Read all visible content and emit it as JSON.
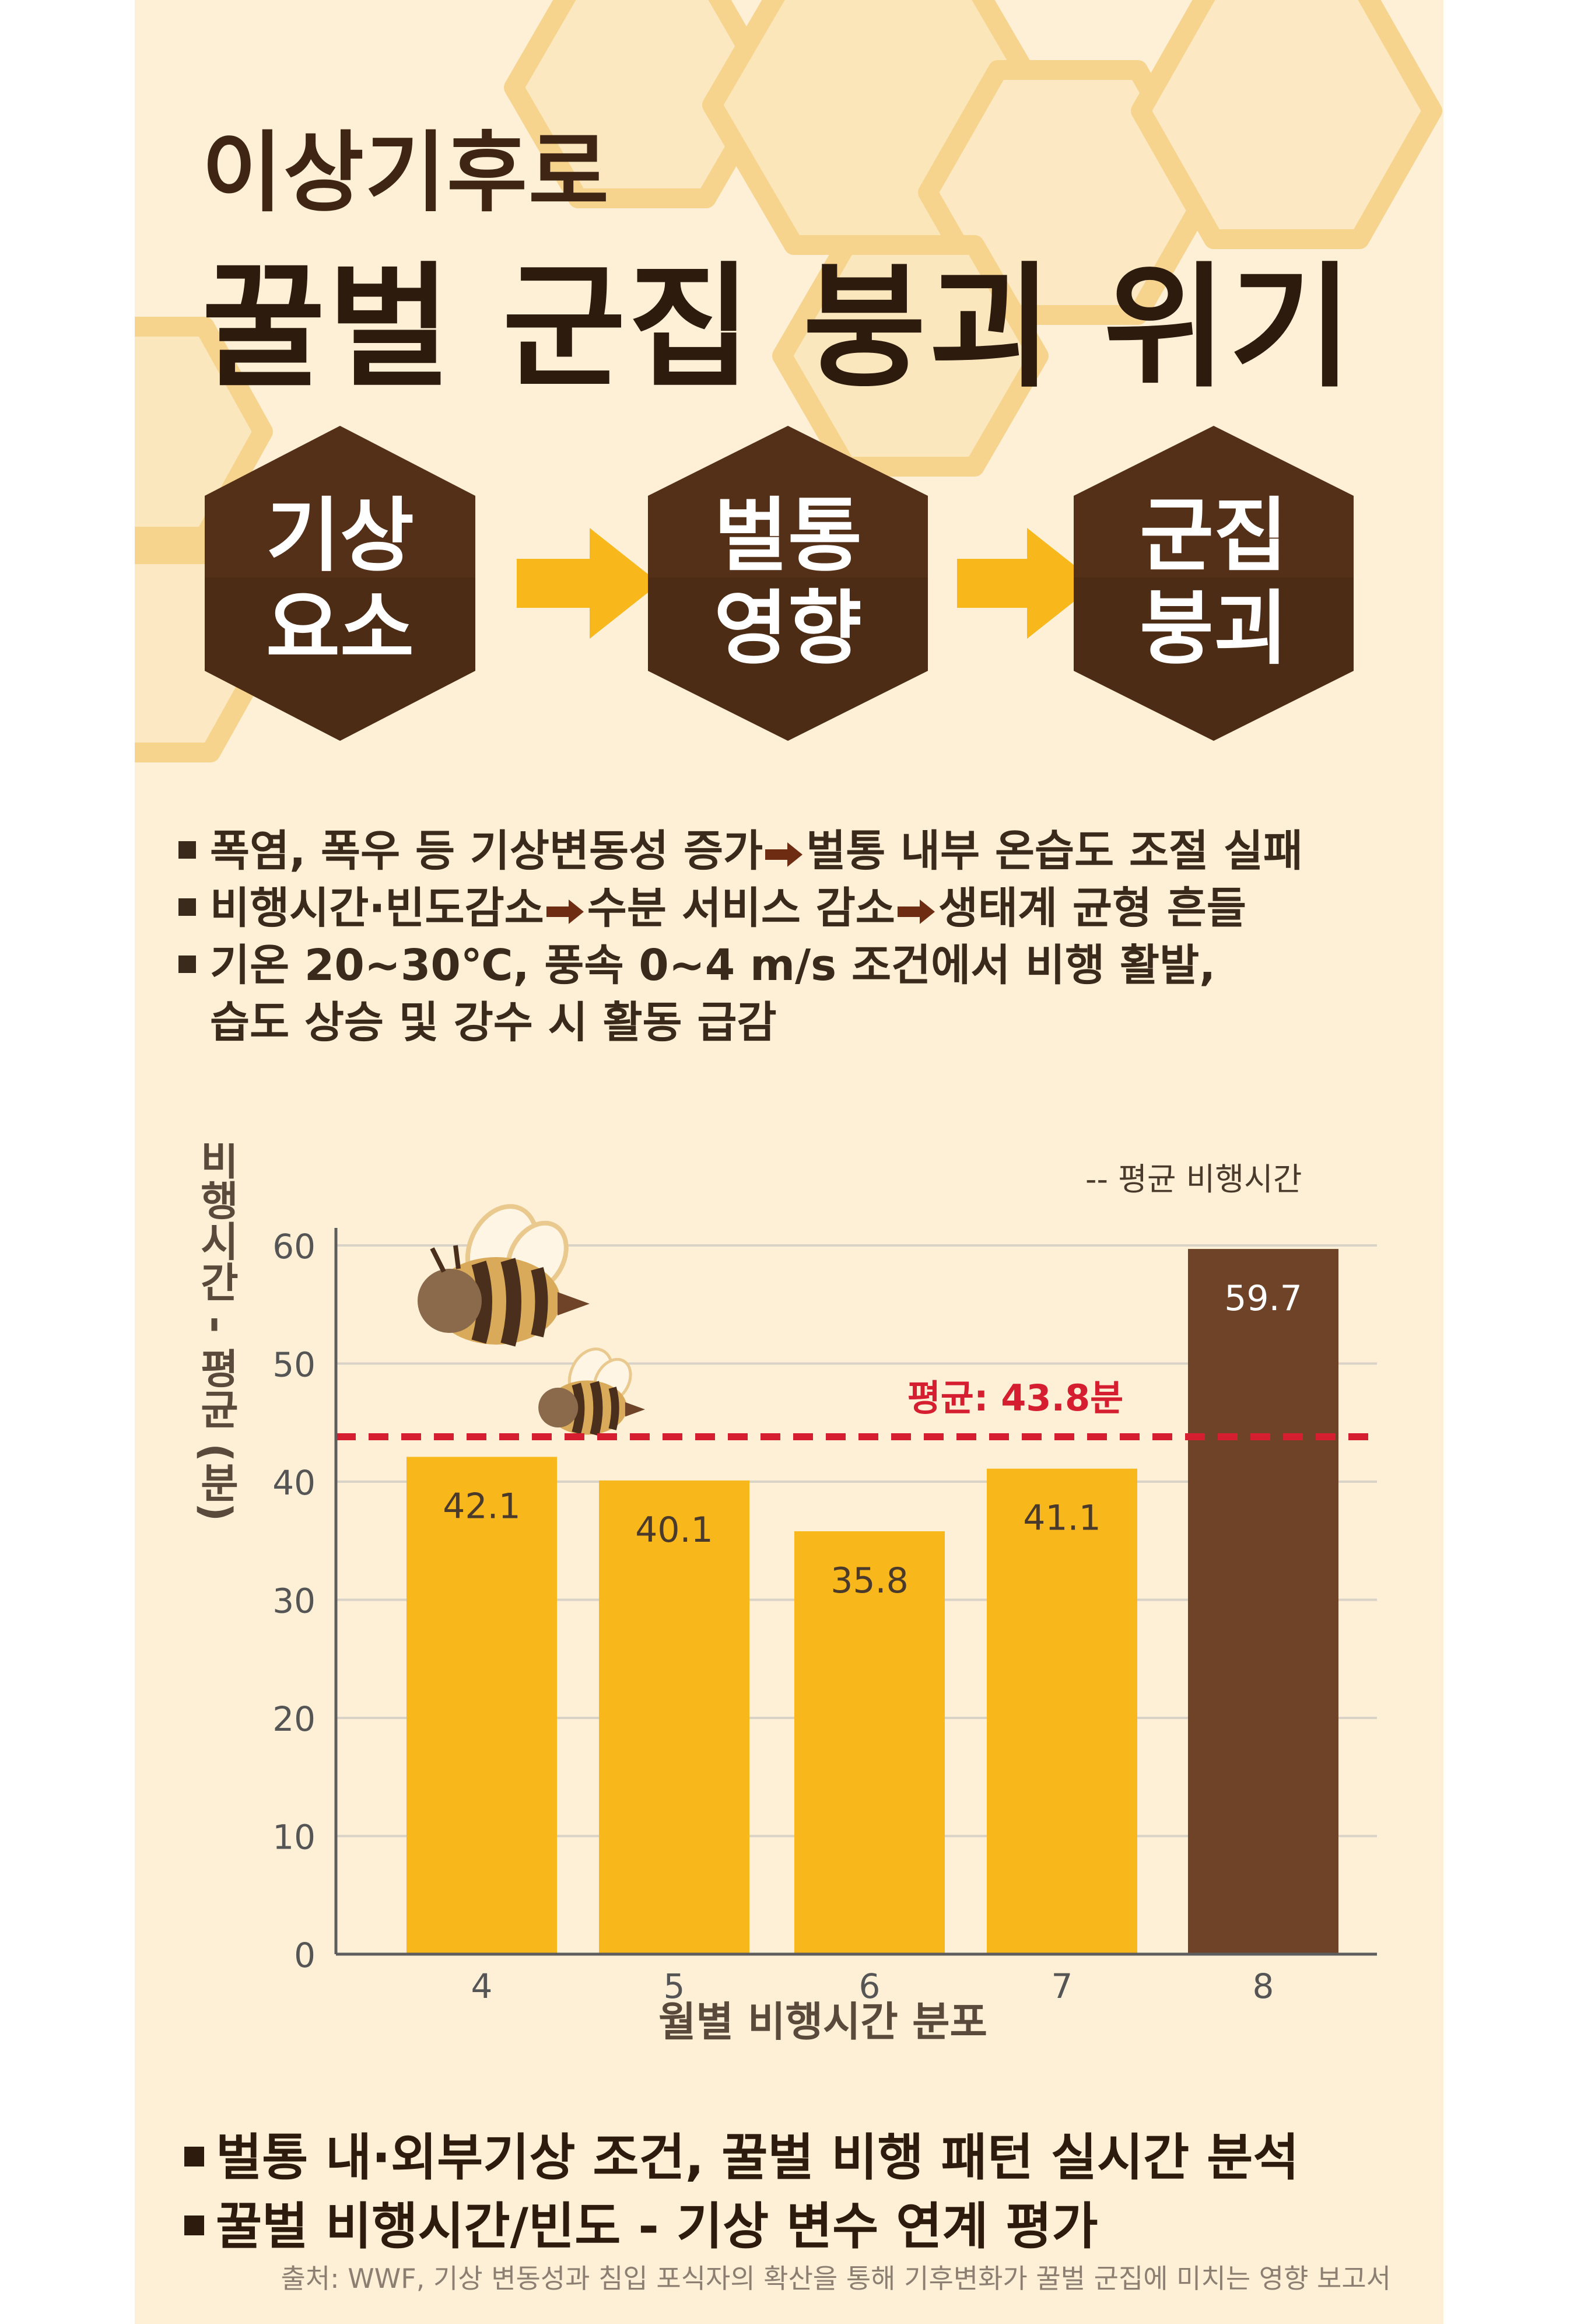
{
  "title": {
    "line1": "이상기후로",
    "line2": "꿀벌 군집 붕괴 위기"
  },
  "flow": [
    {
      "line1": "기상",
      "line2": "요소"
    },
    {
      "line1": "벌통",
      "line2": "영향"
    },
    {
      "line1": "군집",
      "line2": "붕괴"
    }
  ],
  "bullets": {
    "b1_a": "폭염, 폭우 등 기상변동성 증가",
    "b1_b": "벌통 내부 온습도 조절 실패",
    "b2_a": "비행시간·빈도감소",
    "b2_b": "수분 서비스 감소",
    "b2_c": "생태계 균형 흔들",
    "b3_a": "기온 20~30℃, 풍속 0~4 m/s 조건에서 비행 활발,",
    "b3_b": "습도 상승 및 강수 시 활동 급감"
  },
  "chart_data": {
    "type": "bar",
    "categories": [
      "4",
      "5",
      "6",
      "7",
      "8"
    ],
    "values": [
      42.1,
      40.1,
      35.8,
      41.1,
      59.7
    ],
    "data_labels": [
      "42.1",
      "40.1",
      "35.8",
      "41.1",
      "59.7"
    ],
    "average": 43.8,
    "average_label": "평균: 43.8분",
    "legend_label": "-- 평균 비행시간",
    "legend_placement": "top-right",
    "xlabel": "월별 비행시간 분포",
    "ylabel": "비행시간 - 평균 (분)",
    "ylim": [
      0,
      60
    ],
    "yticks": [
      0,
      10,
      20,
      30,
      40,
      50,
      60
    ],
    "grid": true,
    "colors": {
      "bar": "#f8b71a",
      "highlight": "#6e4327",
      "average_line": "#d51f30",
      "grid": "#d9d2c6"
    }
  },
  "bottom": {
    "line1": "벌통 내·외부기상 조건, 꿀벌 비행 패턴 실시간 분석",
    "line2": "꿀벌 비행시간/빈도 - 기상 변수 연계 평가",
    "source": "출처: WWF, 기상 변동성과 침입 포식자의 확산을 통해 기후변화가 꿀벌 군집에 미치는 영향 보고서"
  },
  "colors": {
    "background": "#fdf0d6",
    "hex_fill": "#4d2c16",
    "arrow": "#f8b71a",
    "text_dark": "#2d1b0e"
  }
}
